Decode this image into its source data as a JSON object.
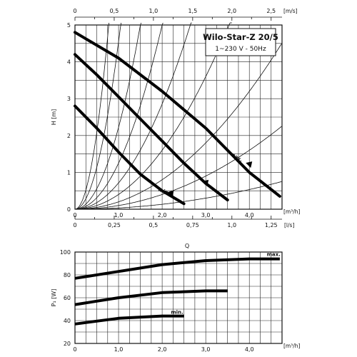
{
  "chart_data": [
    {
      "type": "line",
      "title": "Wilo-Star-Z 20/5",
      "subtitle": "1~230 V - 50Hz",
      "ylabel": "H [m]",
      "y_ticks": [
        "0",
        "1",
        "2",
        "3",
        "4",
        "5"
      ],
      "ylim": [
        0,
        5
      ],
      "xlim": [
        0,
        4.75
      ],
      "x_axis_bottom": {
        "unit": "[m³/h]",
        "ticks": [
          {
            "value": 0,
            "label": "0"
          },
          {
            "value": 1,
            "label": "1,0"
          },
          {
            "value": 2,
            "label": "2,0"
          },
          {
            "value": 3,
            "label": "3,0"
          },
          {
            "value": 4,
            "label": "4,0"
          }
        ]
      },
      "x_axis_ls": {
        "unit": "[l/s]",
        "ticks": [
          {
            "value": 0,
            "label": "0"
          },
          {
            "value": 0.9,
            "label": "0,25"
          },
          {
            "value": 1.8,
            "label": "0,5"
          },
          {
            "value": 2.7,
            "label": "0,75"
          },
          {
            "value": 3.6,
            "label": "1,0"
          },
          {
            "value": 4.5,
            "label": "1,25"
          }
        ]
      },
      "x_axis_top": {
        "unit": "[m/s]",
        "ticks": [
          {
            "value": 0,
            "label": "0"
          },
          {
            "value": 0.9,
            "label": "0,5"
          },
          {
            "value": 1.8,
            "label": "1,0"
          },
          {
            "value": 2.7,
            "label": "1,5"
          },
          {
            "value": 3.6,
            "label": "2,0"
          },
          {
            "value": 4.5,
            "label": "2,5"
          }
        ]
      },
      "grid": true,
      "series": [
        {
          "name": "max.",
          "x": [
            0,
            1,
            2,
            3,
            4,
            4.7
          ],
          "y": [
            4.8,
            4.1,
            3.2,
            2.2,
            1.0,
            0.35
          ]
        },
        {
          "name": "",
          "x": [
            0,
            0.5,
            1,
            1.5,
            2,
            2.5,
            3,
            3.5
          ],
          "y": [
            4.2,
            3.65,
            3.05,
            2.45,
            1.85,
            1.25,
            0.7,
            0.25
          ]
        },
        {
          "name": "min.",
          "x": [
            0,
            0.5,
            1,
            1.5,
            2,
            2.5
          ],
          "y": [
            2.8,
            2.2,
            1.55,
            0.95,
            0.5,
            0.15
          ]
        }
      ],
      "system_curves": [
        {
          "k": 30
        },
        {
          "k": 10
        },
        {
          "k": 5
        },
        {
          "k": 2.5
        },
        {
          "k": 1.4
        },
        {
          "k": 0.8
        },
        {
          "k": 0.45
        },
        {
          "k": 0.22
        },
        {
          "k": 0.12
        }
      ]
    },
    {
      "type": "line",
      "title": "",
      "xlabel": "Q",
      "ylabel": "P₁ [W]",
      "y_ticks": [
        "20",
        "40",
        "60",
        "80",
        "100"
      ],
      "ylim": [
        20,
        100
      ],
      "xlim": [
        0,
        4.75
      ],
      "x_axis_bottom": {
        "unit": "[m³/h]",
        "ticks": [
          {
            "value": 0,
            "label": "0"
          },
          {
            "value": 1,
            "label": "1,0"
          },
          {
            "value": 2,
            "label": "2,0"
          },
          {
            "value": 3,
            "label": "3,0"
          },
          {
            "value": 4,
            "label": "4,0"
          }
        ]
      },
      "grid": true,
      "series": [
        {
          "name": "max.",
          "x": [
            0,
            1,
            2,
            3,
            4,
            4.7
          ],
          "y": [
            77,
            83,
            89,
            92.5,
            94,
            94
          ]
        },
        {
          "name": "",
          "x": [
            0,
            1,
            2,
            3,
            3.5
          ],
          "y": [
            54,
            60,
            64.5,
            66,
            66
          ]
        },
        {
          "name": "min.",
          "x": [
            0,
            1,
            2,
            2.5
          ],
          "y": [
            37,
            42,
            44,
            44
          ]
        }
      ]
    }
  ]
}
